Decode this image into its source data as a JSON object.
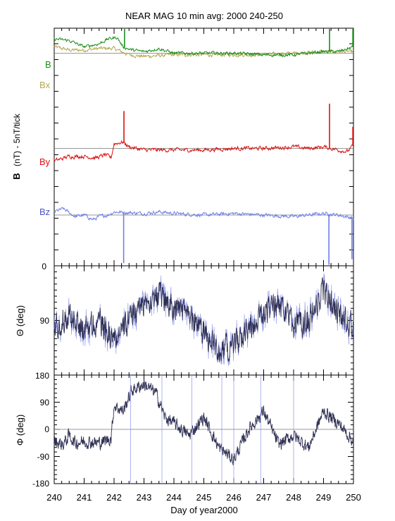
{
  "title": "NEAR MAG 10 min avg: 2000 240-250",
  "xlabel": "Day of year2000",
  "colors": {
    "B": "#1a8f1a",
    "Bx": "#b5a850",
    "By": "#dd1111",
    "Bz": "#6f7ee6",
    "theta": "#2e2f52",
    "phi": "#2e2f52",
    "theta_thin": "#8a93ea",
    "refline": "#777777",
    "frame": "#000000"
  },
  "chart_data": [
    {
      "type": "line",
      "panel": "B components",
      "ylabel_bold": "B",
      "ylabel_rest": "(nT) - 5nT/tick",
      "xlim": [
        240,
        250
      ],
      "y_tick_labels": [
        "0"
      ],
      "grid": false,
      "legend": "labels at left inside panel",
      "series": [
        {
          "name": "B",
          "key": "B",
          "offset": 67,
          "anchors": [
            [
              240,
              4.5
            ],
            [
              240.5,
              4
            ],
            [
              241,
              2
            ],
            [
              241.5,
              3
            ],
            [
              241.8,
              4.5
            ],
            [
              242.1,
              5
            ],
            [
              242.3,
              2
            ],
            [
              242.6,
              1
            ],
            [
              243,
              0.5
            ],
            [
              243.5,
              1.5
            ],
            [
              244,
              0
            ],
            [
              245,
              0
            ],
            [
              246,
              0
            ],
            [
              247,
              -0.5
            ],
            [
              248,
              -0.5
            ],
            [
              248.5,
              0
            ],
            [
              249,
              0.5
            ],
            [
              249.5,
              0.5
            ],
            [
              250,
              2
            ]
          ],
          "noise": 0.9,
          "spikes": [
            [
              242.35,
              16
            ],
            [
              249.2,
              18
            ],
            [
              249.98,
              15
            ]
          ]
        },
        {
          "name": "Bx",
          "key": "Bx",
          "offset": 67,
          "anchors": [
            [
              240,
              2
            ],
            [
              240.5,
              1
            ],
            [
              241,
              1
            ],
            [
              241.5,
              1.5
            ],
            [
              242,
              1.5
            ],
            [
              242.5,
              -0.5
            ],
            [
              243,
              -1
            ],
            [
              244,
              -0.5
            ],
            [
              245,
              -0.5
            ],
            [
              246,
              -0.5
            ],
            [
              247,
              -0.5
            ],
            [
              248,
              0
            ],
            [
              249,
              0.5
            ],
            [
              250,
              0.5
            ]
          ],
          "noise": 1.0,
          "spikes": []
        },
        {
          "name": "By",
          "key": "By",
          "offset": 37,
          "anchors": [
            [
              240,
              -4
            ],
            [
              240.5,
              -2.5
            ],
            [
              241,
              -2.5
            ],
            [
              241.4,
              -3
            ],
            [
              241.7,
              -2
            ],
            [
              241.9,
              -3
            ],
            [
              242,
              1.5
            ],
            [
              242.3,
              2
            ],
            [
              242.5,
              0.5
            ],
            [
              243,
              -0.5
            ],
            [
              244,
              -0.5
            ],
            [
              245,
              -0.5
            ],
            [
              246,
              0
            ],
            [
              247,
              0
            ],
            [
              248,
              0.5
            ],
            [
              248.5,
              0
            ],
            [
              249,
              0.5
            ],
            [
              249.5,
              -0.5
            ],
            [
              249.8,
              -1
            ],
            [
              250,
              1
            ]
          ],
          "noise": 1.1,
          "spikes": [
            [
              242.33,
              10
            ],
            [
              249.2,
              14
            ],
            [
              249.98,
              6
            ]
          ]
        },
        {
          "name": "Bz",
          "key": "Bz",
          "offset": 16,
          "anchors": [
            [
              240,
              1
            ],
            [
              240.3,
              2
            ],
            [
              240.7,
              -0.5
            ],
            [
              241,
              0
            ],
            [
              241.3,
              -1.5
            ],
            [
              241.5,
              -0.5
            ],
            [
              241.8,
              0
            ],
            [
              242,
              1
            ],
            [
              243,
              0.5
            ],
            [
              243.5,
              1
            ],
            [
              244,
              0.5
            ],
            [
              245,
              0
            ],
            [
              246,
              0.5
            ],
            [
              247,
              0
            ],
            [
              248,
              -0.5
            ],
            [
              249,
              0.5
            ],
            [
              249.5,
              0
            ],
            [
              250,
              -1
            ]
          ],
          "noise": 1.0,
          "spikes": [
            [
              242.32,
              -16
            ],
            [
              249.18,
              -16
            ],
            [
              249.95,
              -13
            ]
          ]
        }
      ]
    },
    {
      "type": "line",
      "panel": "Theta",
      "ylabel": "Θ (deg)",
      "xlim": [
        240,
        250
      ],
      "ylim": [
        180,
        0
      ],
      "y_tick_labels": [
        "90"
      ],
      "series": [
        {
          "name": "Theta",
          "key": "theta",
          "anchors": [
            [
              240,
              100
            ],
            [
              240.5,
              80
            ],
            [
              241,
              105
            ],
            [
              241.5,
              90
            ],
            [
              242,
              120
            ],
            [
              242.5,
              90
            ],
            [
              243,
              60
            ],
            [
              243.5,
              50
            ],
            [
              244,
              70
            ],
            [
              244.5,
              80
            ],
            [
              245,
              110
            ],
            [
              245.5,
              140
            ],
            [
              246,
              130
            ],
            [
              246.5,
              100
            ],
            [
              247,
              80
            ],
            [
              247.5,
              60
            ],
            [
              248,
              100
            ],
            [
              248.5,
              90
            ],
            [
              249,
              40
            ],
            [
              249.5,
              80
            ],
            [
              250,
              100
            ]
          ],
          "noise": 28
        }
      ]
    },
    {
      "type": "line",
      "panel": "Phi",
      "ylabel": "Φ (deg)",
      "xlim": [
        240,
        250
      ],
      "ylim": [
        -180,
        180
      ],
      "y_tick_labels": [
        "180",
        "90",
        "0",
        "-90",
        "-180"
      ],
      "reference_line": 0,
      "series": [
        {
          "name": "Phi",
          "key": "phi",
          "anchors": [
            [
              240,
              -40
            ],
            [
              240.3,
              -50
            ],
            [
              240.5,
              -20
            ],
            [
              240.7,
              -45
            ],
            [
              241,
              -40
            ],
            [
              241.5,
              -45
            ],
            [
              241.9,
              -30
            ],
            [
              242,
              80
            ],
            [
              242.3,
              60
            ],
            [
              242.6,
              130
            ],
            [
              243,
              150
            ],
            [
              243.4,
              120
            ],
            [
              243.7,
              40
            ],
            [
              244,
              20
            ],
            [
              244.5,
              -20
            ],
            [
              245,
              40
            ],
            [
              245.5,
              -60
            ],
            [
              246,
              -100
            ],
            [
              246.5,
              0
            ],
            [
              247,
              60
            ],
            [
              247.5,
              -50
            ],
            [
              248,
              -20
            ],
            [
              248.5,
              -60
            ],
            [
              249,
              60
            ],
            [
              249.5,
              20
            ],
            [
              250,
              -40
            ]
          ],
          "noise": 30
        }
      ]
    }
  ],
  "x_tick_labels": [
    "240",
    "241",
    "242",
    "243",
    "244",
    "245",
    "246",
    "247",
    "248",
    "249",
    "250"
  ]
}
